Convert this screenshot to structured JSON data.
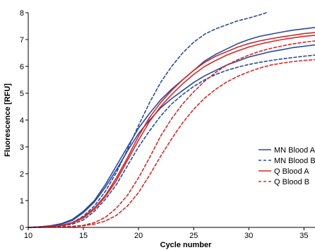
{
  "chart_data": {
    "type": "line",
    "xlabel": "Cycle number",
    "ylabel": "Fluorescence [RFU]",
    "xlim": [
      10,
      36
    ],
    "ylim": [
      0,
      8
    ],
    "x_ticks": [
      10,
      15,
      20,
      25,
      30,
      35
    ],
    "y_ticks": [
      0,
      1,
      2,
      3,
      4,
      5,
      6,
      7,
      8
    ],
    "grid": false,
    "legend_position": "right",
    "legend": [
      {
        "label": "MN Blood A",
        "color": "#2a4a9a",
        "dash": "solid"
      },
      {
        "label": "MN Blood B",
        "color": "#2a4a9a",
        "dash": "dashed"
      },
      {
        "label": "Q Blood A",
        "color": "#d02a2a",
        "dash": "solid"
      },
      {
        "label": "Q Blood B",
        "color": "#d02a2a",
        "dash": "dashed"
      }
    ],
    "series": [
      {
        "group": "MN Blood A",
        "color": "#2a4a9a",
        "dash": "solid",
        "x": [
          10,
          11,
          12,
          13,
          14,
          15,
          16,
          17,
          18,
          19,
          20,
          21,
          22,
          23,
          24,
          25,
          26,
          27,
          28,
          29,
          30,
          31,
          32,
          33,
          34,
          35,
          36
        ],
        "y": [
          0,
          0.02,
          0.06,
          0.14,
          0.3,
          0.6,
          1.0,
          1.6,
          2.3,
          3.0,
          3.7,
          4.25,
          4.75,
          5.15,
          5.5,
          5.85,
          6.2,
          6.45,
          6.65,
          6.85,
          7.0,
          7.12,
          7.2,
          7.28,
          7.35,
          7.4,
          7.45
        ]
      },
      {
        "group": "MN Blood A",
        "color": "#2a4a9a",
        "dash": "solid",
        "x": [
          10,
          11,
          12,
          13,
          14,
          15,
          16,
          17,
          18,
          19,
          20,
          21,
          22,
          23,
          24,
          25,
          26,
          27,
          28,
          29,
          30,
          31,
          32,
          33,
          34,
          35,
          36
        ],
        "y": [
          0,
          0.02,
          0.05,
          0.12,
          0.26,
          0.55,
          0.95,
          1.5,
          2.15,
          2.85,
          3.5,
          4.0,
          4.45,
          4.8,
          5.1,
          5.4,
          5.65,
          5.85,
          6.05,
          6.2,
          6.35,
          6.45,
          6.55,
          6.62,
          6.7,
          6.75,
          6.8
        ]
      },
      {
        "group": "MN Blood B",
        "color": "#2a4a9a",
        "dash": "dashed",
        "x": [
          10,
          11,
          12,
          13,
          14,
          15,
          16,
          17,
          18,
          19,
          20,
          21,
          22,
          23,
          24,
          25,
          26,
          27,
          28,
          29,
          30,
          31,
          31.6
        ],
        "y": [
          0,
          0.01,
          0.03,
          0.08,
          0.18,
          0.42,
          0.8,
          1.35,
          2.05,
          2.9,
          3.8,
          4.65,
          5.4,
          6.0,
          6.5,
          6.9,
          7.2,
          7.4,
          7.55,
          7.7,
          7.8,
          7.92,
          8.0
        ]
      },
      {
        "group": "MN Blood B",
        "color": "#2a4a9a",
        "dash": "dashed",
        "x": [
          10,
          11,
          12,
          13,
          14,
          15,
          16,
          17,
          18,
          19,
          20,
          21,
          22,
          23,
          24,
          25,
          26,
          27,
          28,
          29,
          30,
          31,
          32,
          33,
          34,
          35,
          36
        ],
        "y": [
          0,
          0.01,
          0.02,
          0.05,
          0.12,
          0.28,
          0.6,
          1.05,
          1.6,
          2.3,
          3.0,
          3.6,
          4.15,
          4.6,
          4.95,
          5.25,
          5.5,
          5.7,
          5.85,
          5.97,
          6.07,
          6.15,
          6.22,
          6.28,
          6.33,
          6.38,
          6.42
        ]
      },
      {
        "group": "Q Blood A",
        "color": "#d02a2a",
        "dash": "solid",
        "x": [
          10,
          11,
          12,
          13,
          14,
          15,
          16,
          17,
          18,
          19,
          20,
          21,
          22,
          23,
          24,
          25,
          26,
          27,
          28,
          29,
          30,
          31,
          32,
          33,
          34,
          35,
          36
        ],
        "y": [
          0,
          0.01,
          0.03,
          0.08,
          0.18,
          0.38,
          0.72,
          1.2,
          1.85,
          2.6,
          3.4,
          4.1,
          4.65,
          5.1,
          5.5,
          5.85,
          6.15,
          6.38,
          6.55,
          6.72,
          6.85,
          6.95,
          7.03,
          7.1,
          7.16,
          7.22,
          7.26
        ]
      },
      {
        "group": "Q Blood A",
        "color": "#d02a2a",
        "dash": "solid",
        "x": [
          10,
          11,
          12,
          13,
          14,
          15,
          16,
          17,
          18,
          19,
          20,
          21,
          22,
          23,
          24,
          25,
          26,
          27,
          28,
          29,
          30,
          31,
          32,
          33,
          34,
          35,
          36
        ],
        "y": [
          0,
          0.01,
          0.03,
          0.07,
          0.16,
          0.35,
          0.68,
          1.15,
          1.75,
          2.5,
          3.25,
          3.95,
          4.5,
          4.95,
          5.35,
          5.7,
          6.0,
          6.22,
          6.42,
          6.58,
          6.72,
          6.83,
          6.92,
          7.0,
          7.06,
          7.12,
          7.16
        ]
      },
      {
        "group": "Q Blood B",
        "color": "#d02a2a",
        "dash": "dashed",
        "x": [
          10,
          11,
          12,
          13,
          14,
          15,
          16,
          17,
          18,
          19,
          20,
          21,
          22,
          23,
          24,
          25,
          26,
          27,
          28,
          29,
          30,
          31,
          32,
          33,
          34,
          35,
          36
        ],
        "y": [
          0,
          0,
          0.01,
          0.02,
          0.04,
          0.08,
          0.18,
          0.38,
          0.72,
          1.2,
          1.85,
          2.6,
          3.4,
          4.05,
          4.6,
          5.05,
          5.45,
          5.78,
          6.05,
          6.25,
          6.42,
          6.56,
          6.67,
          6.76,
          6.84,
          6.9,
          6.95
        ]
      },
      {
        "group": "Q Blood B",
        "color": "#d02a2a",
        "dash": "dashed",
        "x": [
          10,
          11,
          12,
          13,
          14,
          15,
          16,
          17,
          18,
          19,
          20,
          21,
          22,
          23,
          24,
          25,
          26,
          27,
          28,
          29,
          30,
          31,
          32,
          33,
          34,
          35,
          36
        ],
        "y": [
          0,
          0,
          0.01,
          0.01,
          0.03,
          0.06,
          0.12,
          0.24,
          0.45,
          0.8,
          1.3,
          1.95,
          2.65,
          3.3,
          3.9,
          4.4,
          4.82,
          5.15,
          5.42,
          5.63,
          5.8,
          5.94,
          6.05,
          6.12,
          6.18,
          6.22,
          6.25
        ]
      }
    ]
  }
}
